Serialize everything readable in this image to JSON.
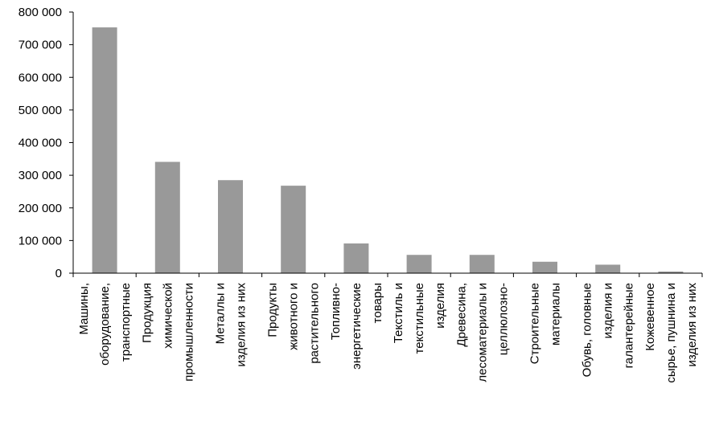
{
  "chart_data": {
    "type": "bar",
    "title": "",
    "xlabel": "",
    "ylabel": "",
    "ylim": [
      0,
      800000
    ],
    "yticks": [
      0,
      100000,
      200000,
      300000,
      400000,
      500000,
      600000,
      700000,
      800000
    ],
    "ytick_labels": [
      "0",
      "100 000",
      "200 000",
      "300 000",
      "400 000",
      "500 000",
      "600 000",
      "700 000",
      "800 000"
    ],
    "grid": false,
    "legend": "none",
    "bar_color": "#999999",
    "categories": [
      [
        "Машины,",
        "оборудование,",
        "транспортные"
      ],
      [
        "Продукция",
        "химической",
        "промышленности"
      ],
      [
        "Металлы и",
        "изделия из них"
      ],
      [
        "Продукты",
        "животного и",
        "растительного"
      ],
      [
        "Топливно-",
        "энергетические",
        "товары"
      ],
      [
        "Текстиль и",
        "текстильные",
        "изделия"
      ],
      [
        "Древесина,",
        "лесоматериалы и",
        "целлюлозно-"
      ],
      [
        "Строительные",
        "материалы"
      ],
      [
        "Обувь, головные",
        "изделия и",
        "галантерейные"
      ],
      [
        "Кожевенное",
        "сырье, пушнина и",
        "изделия из них"
      ]
    ],
    "values": [
      753000,
      341000,
      285000,
      268000,
      91000,
      56000,
      56000,
      35000,
      26000,
      5000
    ]
  }
}
